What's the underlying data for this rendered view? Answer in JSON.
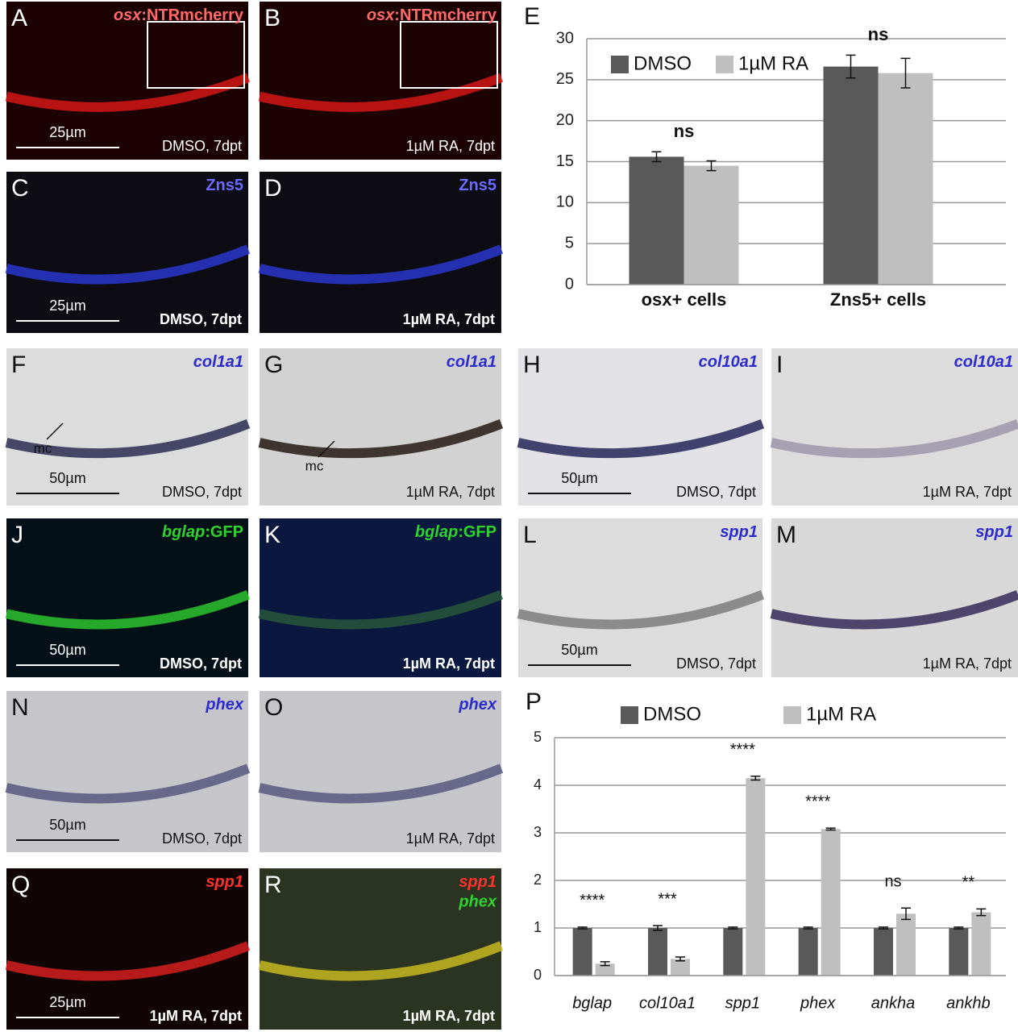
{
  "panels": [
    {
      "letter": "A",
      "gene": "osx",
      "suffix": ":NTRmcherry",
      "scale": "25µm",
      "condition": "DMSO, 7dpt"
    },
    {
      "letter": "B",
      "gene": "osx",
      "suffix": ":NTRmcherry",
      "condition": "1µM RA, 7dpt"
    },
    {
      "letter": "C",
      "marker": "Zns5",
      "scale": "25µm",
      "condition": "DMSO, 7dpt"
    },
    {
      "letter": "D",
      "marker": "Zns5",
      "condition": "1µM RA, 7dpt"
    },
    {
      "letter": "F",
      "gene": "col1a1",
      "scale": "50µm",
      "condition": "DMSO, 7dpt",
      "annotation": "mc"
    },
    {
      "letter": "G",
      "gene": "col1a1",
      "condition": "1µM RA, 7dpt",
      "annotation": "mc"
    },
    {
      "letter": "H",
      "gene": "col10a1",
      "scale": "50µm",
      "condition": "DMSO, 7dpt"
    },
    {
      "letter": "I",
      "gene": "col10a1",
      "condition": "1µM RA, 7dpt"
    },
    {
      "letter": "J",
      "gene": "bglap",
      "suffix": ":GFP",
      "scale": "50µm",
      "condition": "DMSO, 7dpt"
    },
    {
      "letter": "K",
      "gene": "bglap",
      "suffix": ":GFP",
      "condition": "1µM RA, 7dpt"
    },
    {
      "letter": "L",
      "gene": "spp1",
      "scale": "50µm",
      "condition": "DMSO, 7dpt"
    },
    {
      "letter": "M",
      "gene": "spp1",
      "condition": "1µM RA, 7dpt"
    },
    {
      "letter": "N",
      "gene": "phex",
      "scale": "50µm",
      "condition": "DMSO, 7dpt"
    },
    {
      "letter": "O",
      "gene": "phex",
      "condition": "1µM RA, 7dpt"
    },
    {
      "letter": "Q",
      "gene": "spp1",
      "scale": "25µm",
      "condition": "1µM RA, 7dpt"
    },
    {
      "letter": "R",
      "gene": "spp1",
      "gene2": "phex",
      "condition": "1µM RA, 7dpt"
    }
  ],
  "chart_data": [
    {
      "type": "bar",
      "letter": "E",
      "categories": [
        "osx+ cells",
        "Zns5+ cells"
      ],
      "series": [
        {
          "name": "DMSO",
          "color": "#595959",
          "values": [
            15.6,
            26.6
          ],
          "errors": [
            0.6,
            1.4
          ]
        },
        {
          "name": "1µM RA",
          "color": "#bfbfbf",
          "values": [
            14.5,
            25.8
          ],
          "errors": [
            0.6,
            1.8
          ]
        }
      ],
      "annotations": [
        "ns",
        "ns"
      ],
      "ylim": [
        0,
        30
      ],
      "yticks": [
        0,
        5,
        10,
        15,
        20,
        25,
        30
      ],
      "grid": true,
      "legend": "top"
    },
    {
      "type": "bar",
      "letter": "P",
      "categories": [
        "bglap",
        "col10a1",
        "spp1",
        "phex",
        "ankha",
        "ankhb"
      ],
      "series": [
        {
          "name": "DMSO",
          "color": "#595959",
          "values": [
            1,
            1,
            1,
            1,
            1,
            1
          ],
          "errors": [
            0.02,
            0.05,
            0.02,
            0.02,
            0.02,
            0.02
          ]
        },
        {
          "name": "1µM RA",
          "color": "#bfbfbf",
          "values": [
            0.25,
            0.35,
            4.15,
            3.08,
            1.3,
            1.33
          ],
          "errors": [
            0.04,
            0.04,
            0.04,
            0.02,
            0.12,
            0.07
          ]
        }
      ],
      "annotations": [
        "****",
        "***",
        "****",
        "****",
        "ns",
        "**"
      ],
      "ylim": [
        0,
        5
      ],
      "yticks": [
        0,
        1,
        2,
        3,
        4,
        5
      ],
      "grid": true,
      "legend": "top"
    }
  ]
}
